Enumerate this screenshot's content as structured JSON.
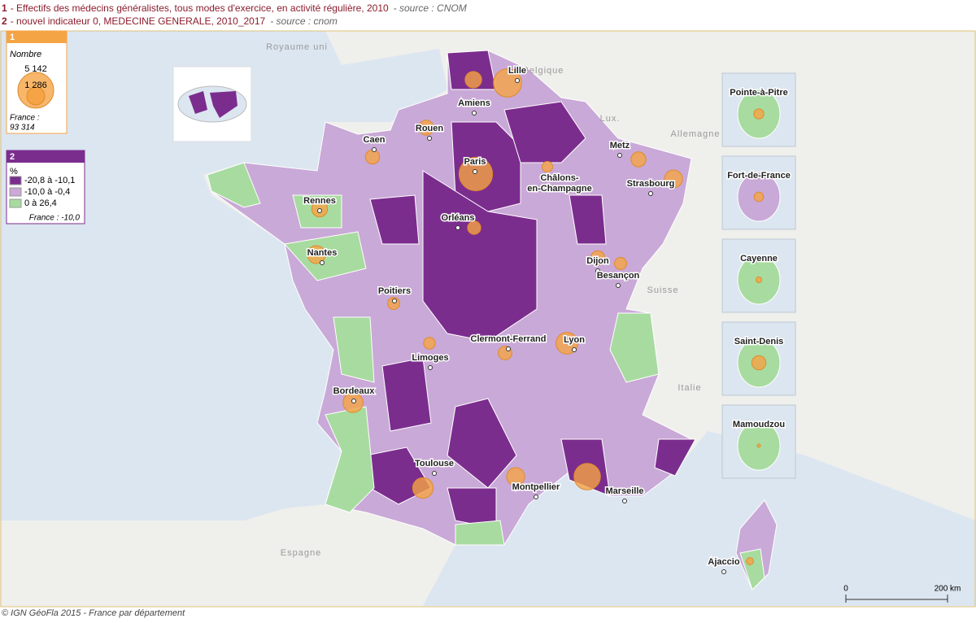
{
  "header": {
    "lines": [
      {
        "num": "1",
        "text": "- Effectifs des médecins généralistes, tous modes d'exercice, en activité régulière, 2010",
        "source": "- source : CNOM"
      },
      {
        "num": "2",
        "text": "- nouvel indicateur 0, MEDECINE GENERALE, 2010_2017",
        "source": "- source : cnom"
      }
    ]
  },
  "legend1": {
    "num": "1",
    "title": "Nombre",
    "max": {
      "value": 5142,
      "label": "5 142"
    },
    "mid": {
      "value": 1286,
      "label": "1 286"
    },
    "france_label": "France :",
    "france_value": "93 314",
    "color": "#f5a445"
  },
  "legend2": {
    "num": "2",
    "unit": "%",
    "classes": [
      {
        "label": "-20,8 à -10,1",
        "color": "#7b2d8e"
      },
      {
        "label": "-10,0 à -0,4",
        "color": "#c9a9d7"
      },
      {
        "label": "0 à 26,4",
        "color": "#a8dba0"
      }
    ],
    "france": "France : -10,0"
  },
  "countries": [
    "Royaume uni",
    "Belgique",
    "Lux.",
    "Allemagne",
    "Suisse",
    "Italie",
    "Espagne"
  ],
  "cities": [
    {
      "name": "Lille",
      "value": 3200
    },
    {
      "name": "Amiens",
      "value": 1100
    },
    {
      "name": "Rouen",
      "value": 900
    },
    {
      "name": "Caen",
      "value": 800
    },
    {
      "name": "Paris",
      "value": 4500
    },
    {
      "name": "Metz",
      "value": 900
    },
    {
      "name": "Strasbourg",
      "value": 1300
    },
    {
      "name": "Châlons-",
      "name2": "en-Champagne",
      "value": 450
    },
    {
      "name": "Rennes",
      "value": 1000
    },
    {
      "name": "Orléans",
      "value": 700
    },
    {
      "name": "Nantes",
      "value": 1300
    },
    {
      "name": "Dijon",
      "value": 800
    },
    {
      "name": "Besançon",
      "value": 600
    },
    {
      "name": "Poitiers",
      "value": 600
    },
    {
      "name": "Clermont-Ferrand",
      "value": 750
    },
    {
      "name": "Lyon",
      "value": 1900
    },
    {
      "name": "Limoges",
      "value": 550
    },
    {
      "name": "Bordeaux",
      "value": 1600
    },
    {
      "name": "Toulouse",
      "value": 1700
    },
    {
      "name": "Montpellier",
      "value": 1300
    },
    {
      "name": "Marseille",
      "value": 2800
    },
    {
      "name": "Ajaccio",
      "value": 200
    }
  ],
  "insets": [
    {
      "name": "Pointe-à-Pitre",
      "value": 400
    },
    {
      "name": "Fort-de-France",
      "value": 350
    },
    {
      "name": "Cayenne",
      "value": 130
    },
    {
      "name": "Saint-Denis",
      "value": 800
    },
    {
      "name": "Mamoudzou",
      "value": 40
    }
  ],
  "scale": {
    "start": "0",
    "end": "200 km"
  },
  "footer": "© IGN GéoFla 2015 - France par département"
}
